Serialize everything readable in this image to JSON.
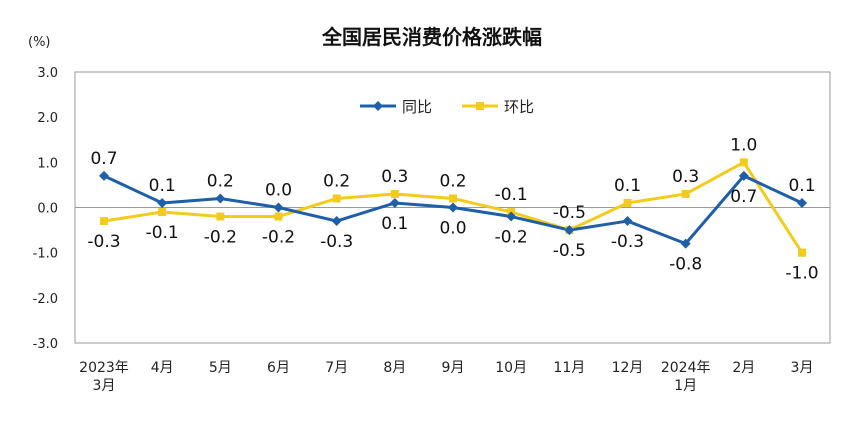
{
  "chart_data": {
    "type": "line",
    "title": "全国居民消费价格涨跌幅",
    "unit": "(%)",
    "ylim": [
      -3.0,
      3.0
    ],
    "yticks": [
      "3.0",
      "2.0",
      "1.0",
      "0.0",
      "-1.0",
      "-2.0",
      "-3.0"
    ],
    "categories": [
      [
        "2023年",
        "3月"
      ],
      [
        "4月"
      ],
      [
        "5月"
      ],
      [
        "6月"
      ],
      [
        "7月"
      ],
      [
        "8月"
      ],
      [
        "9月"
      ],
      [
        "10月"
      ],
      [
        "11月"
      ],
      [
        "12月"
      ],
      [
        "2024年",
        "1月"
      ],
      [
        "2月"
      ],
      [
        "3月"
      ]
    ],
    "series": [
      {
        "name": "同比",
        "color": "#1f5fa8",
        "values": [
          0.7,
          0.1,
          0.2,
          0.0,
          -0.3,
          0.1,
          0.0,
          -0.2,
          -0.5,
          -0.3,
          -0.8,
          0.7,
          0.1
        ],
        "labels": [
          "0.7",
          "0.1",
          "0.2",
          "0.0",
          "-0.3",
          "0.1",
          "0.0",
          "-0.2",
          "-0.5",
          "-0.3",
          "-0.8",
          "0.7",
          "0.1"
        ]
      },
      {
        "name": "环比",
        "color": "#f2cb1d",
        "values": [
          -0.3,
          -0.1,
          -0.2,
          -0.2,
          0.2,
          0.3,
          0.2,
          -0.1,
          -0.5,
          0.1,
          0.3,
          1.0,
          -1.0
        ],
        "labels": [
          "-0.3",
          "-0.1",
          "-0.2",
          "-0.2",
          "0.2",
          "0.3",
          "0.2",
          "-0.1",
          "-0.5",
          "0.1",
          "0.3",
          "1.0",
          "-1.0"
        ]
      }
    ],
    "legend": "top-center"
  }
}
